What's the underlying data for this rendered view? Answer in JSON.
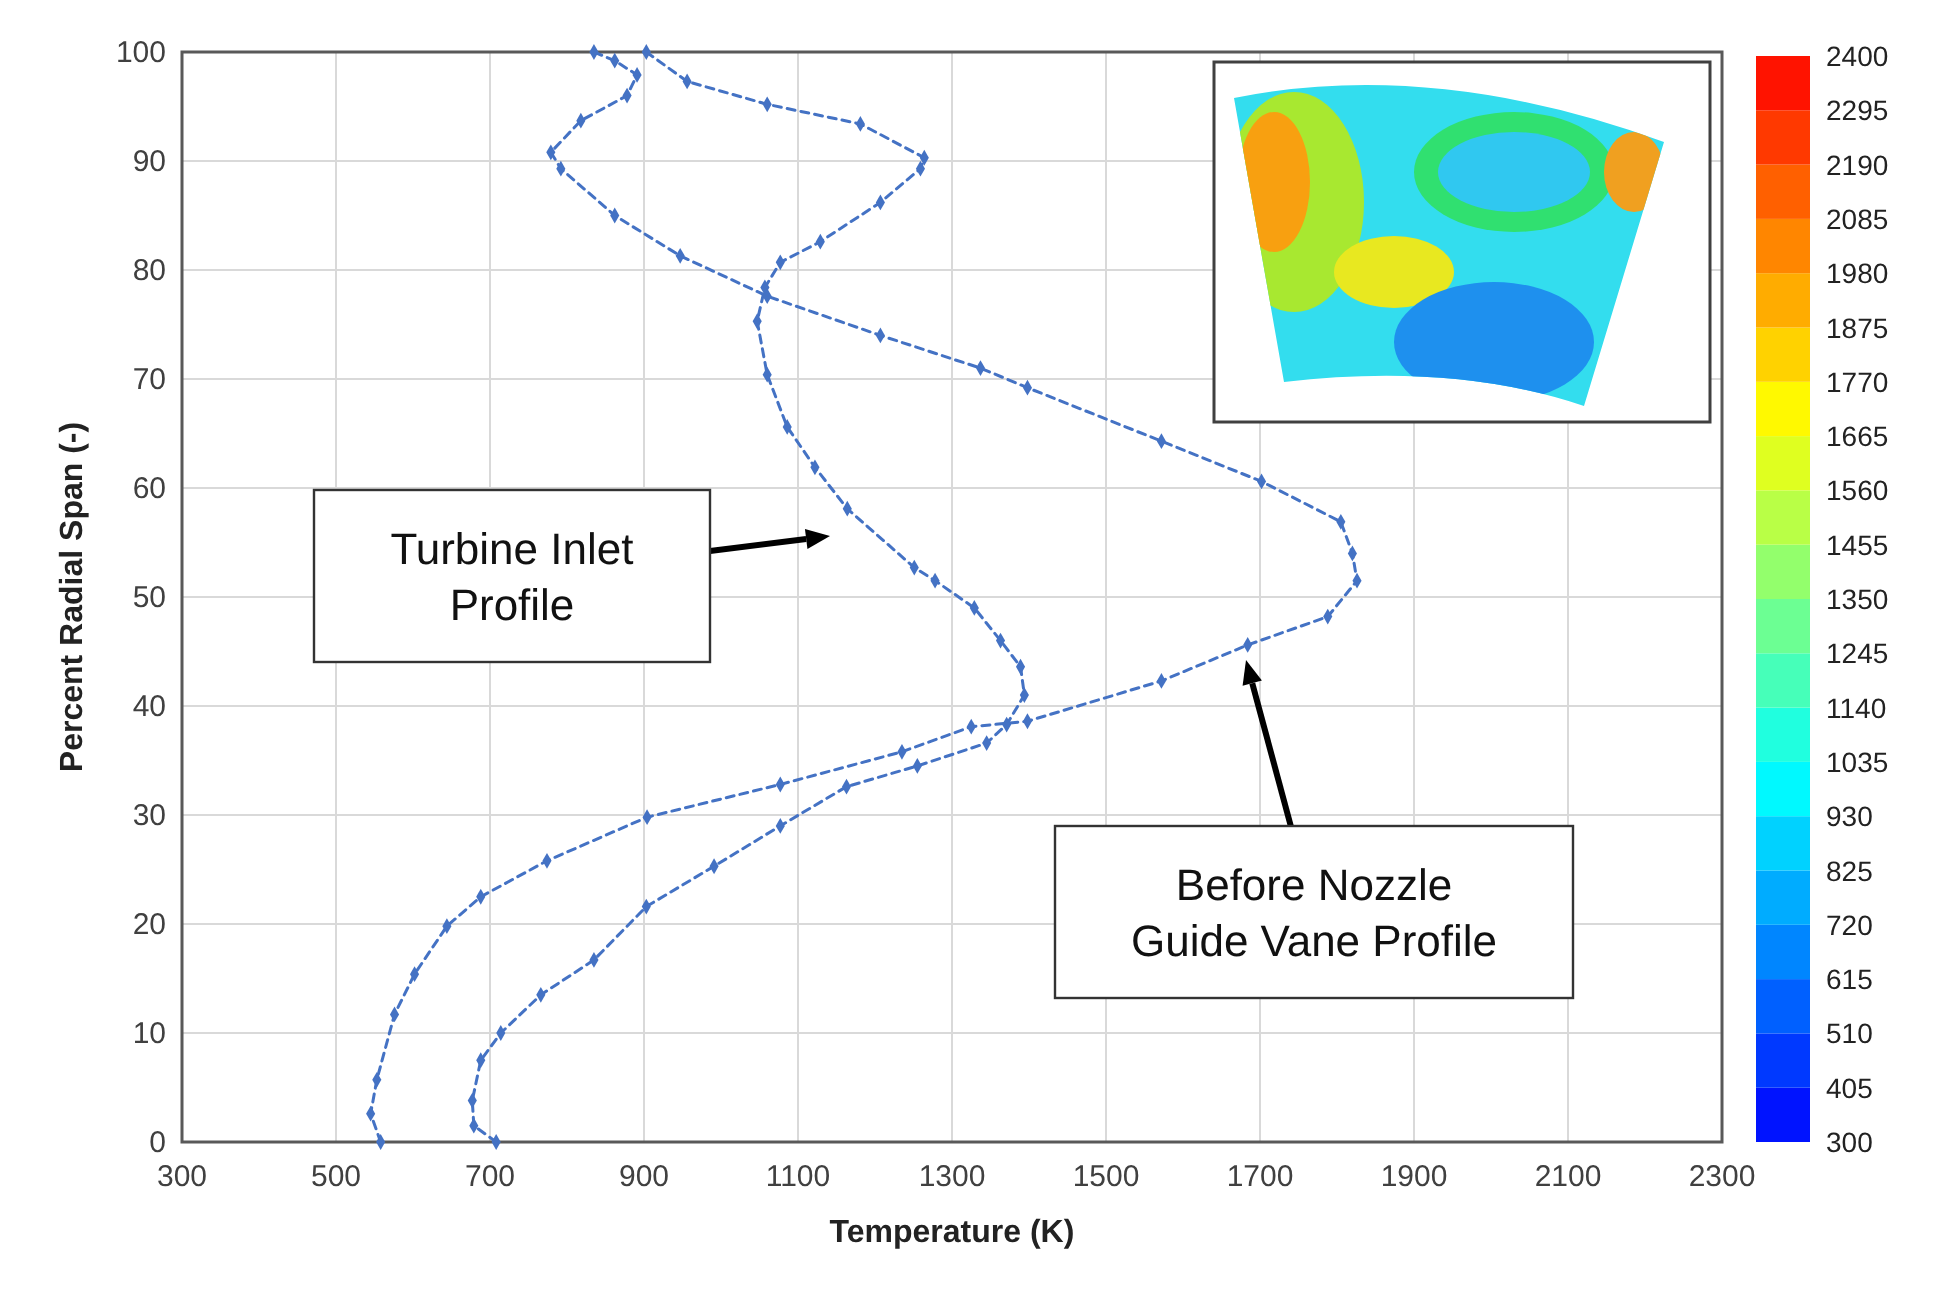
{
  "chart_data": {
    "type": "line",
    "xlabel": "Temperature (K)",
    "ylabel": "Percent Radial Span (-)",
    "xlim": [
      300,
      2300
    ],
    "xticks": [
      300,
      500,
      700,
      900,
      1100,
      1300,
      1500,
      1700,
      1900,
      2100,
      2300
    ],
    "ylim": [
      0,
      100
    ],
    "yticks": [
      0,
      10,
      20,
      30,
      40,
      50,
      60,
      70,
      80,
      90,
      100
    ],
    "grid": true,
    "marker": "diamond",
    "line_style": "dashed",
    "clim": [
      300,
      2400
    ],
    "cticks": [
      300,
      405,
      510,
      615,
      720,
      825,
      930,
      1035,
      1140,
      1245,
      1350,
      1455,
      1560,
      1665,
      1770,
      1875,
      1980,
      2085,
      2190,
      2295,
      2400
    ],
    "series": [
      {
        "color": "#4472c4",
        "x": [
          708,
          679,
          677,
          688,
          714,
          766,
          835,
          903,
          991,
          1077,
          1163,
          1255,
          1345,
          1371,
          1394,
          1389,
          1363,
          1329,
          1278,
          1251,
          1164,
          1122,
          1086,
          1060,
          1047,
          1057,
          1077,
          1129,
          1207,
          1259,
          1264,
          1181,
          1060,
          956,
          903
        ],
        "values": [
          0,
          1.5,
          3.8,
          7.5,
          10,
          13.5,
          16.7,
          21.6,
          25.3,
          29,
          32.6,
          34.5,
          36.6,
          38.3,
          41,
          43.6,
          46,
          49,
          51.5,
          52.7,
          58.1,
          61.9,
          65.6,
          70.4,
          75.3,
          78.4,
          80.7,
          82.6,
          86.2,
          89.3,
          90.3,
          93.4,
          95.2,
          97.3,
          100
        ]
      },
      {
        "color": "#4472c4",
        "x": [
          558,
          545,
          553,
          576,
          602,
          644,
          688,
          774,
          904,
          1077,
          1235,
          1325,
          1398,
          1572,
          1684,
          1788,
          1826,
          1820,
          1805,
          1702,
          1572,
          1398,
          1337,
          1207,
          1060,
          947,
          862,
          792,
          779,
          818,
          878,
          891,
          862,
          835
        ],
        "values": [
          0,
          2.6,
          5.7,
          11.7,
          15.4,
          19.8,
          22.5,
          25.8,
          29.8,
          32.8,
          35.8,
          38.1,
          38.6,
          42.3,
          45.6,
          48.2,
          51.5,
          54,
          56.9,
          60.6,
          64.3,
          69.2,
          71,
          74,
          77.6,
          81.3,
          85,
          89.3,
          90.8,
          93.7,
          96,
          97.9,
          99.2,
          100
        ]
      }
    ],
    "annotations": [
      "Turbine Inlet Profile",
      "Before Nozzle Guide Vane Profile"
    ]
  }
}
